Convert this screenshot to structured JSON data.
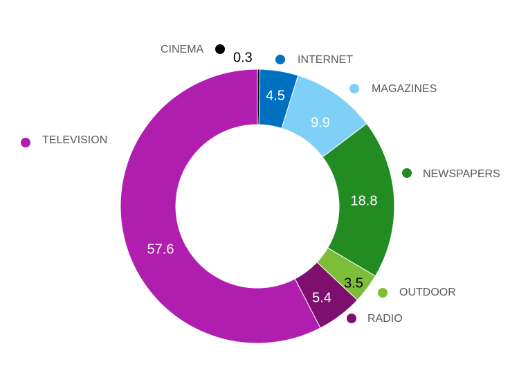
{
  "chart_data": {
    "type": "pie",
    "style": "donut",
    "slices": [
      {
        "label": "CINEMA",
        "value": 0.3,
        "color": "#000000",
        "value_color": "#000000"
      },
      {
        "label": "INTERNET",
        "value": 4.5,
        "color": "#0070C0",
        "value_color": "#ffffff"
      },
      {
        "label": "MAGAZINES",
        "value": 9.9,
        "color": "#7FD0F7",
        "value_color": "#ffffff"
      },
      {
        "label": "NEWSPAPERS",
        "value": 18.8,
        "color": "#228B22",
        "value_color": "#ffffff"
      },
      {
        "label": "OUTDOOR",
        "value": 3.5,
        "color": "#7CBD3A",
        "value_color": "#000000"
      },
      {
        "label": "RADIO",
        "value": 5.4,
        "color": "#7F0F6E",
        "value_color": "#ffffff"
      },
      {
        "label": "TELEVISION",
        "value": 57.6,
        "color": "#B01EB0",
        "value_color": "#ffffff"
      }
    ],
    "legend_placement": "around"
  }
}
